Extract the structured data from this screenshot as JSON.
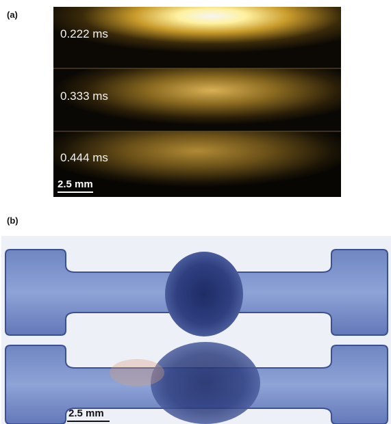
{
  "panel_a": {
    "label": "(a)",
    "frames": [
      {
        "time": "0.222 ms"
      },
      {
        "time": "0.333 ms"
      },
      {
        "time": "0.444 ms"
      }
    ],
    "scale_bar": "2.5 mm"
  },
  "panel_b": {
    "label": "(b)",
    "scale_bar": "2.5 mm"
  }
}
